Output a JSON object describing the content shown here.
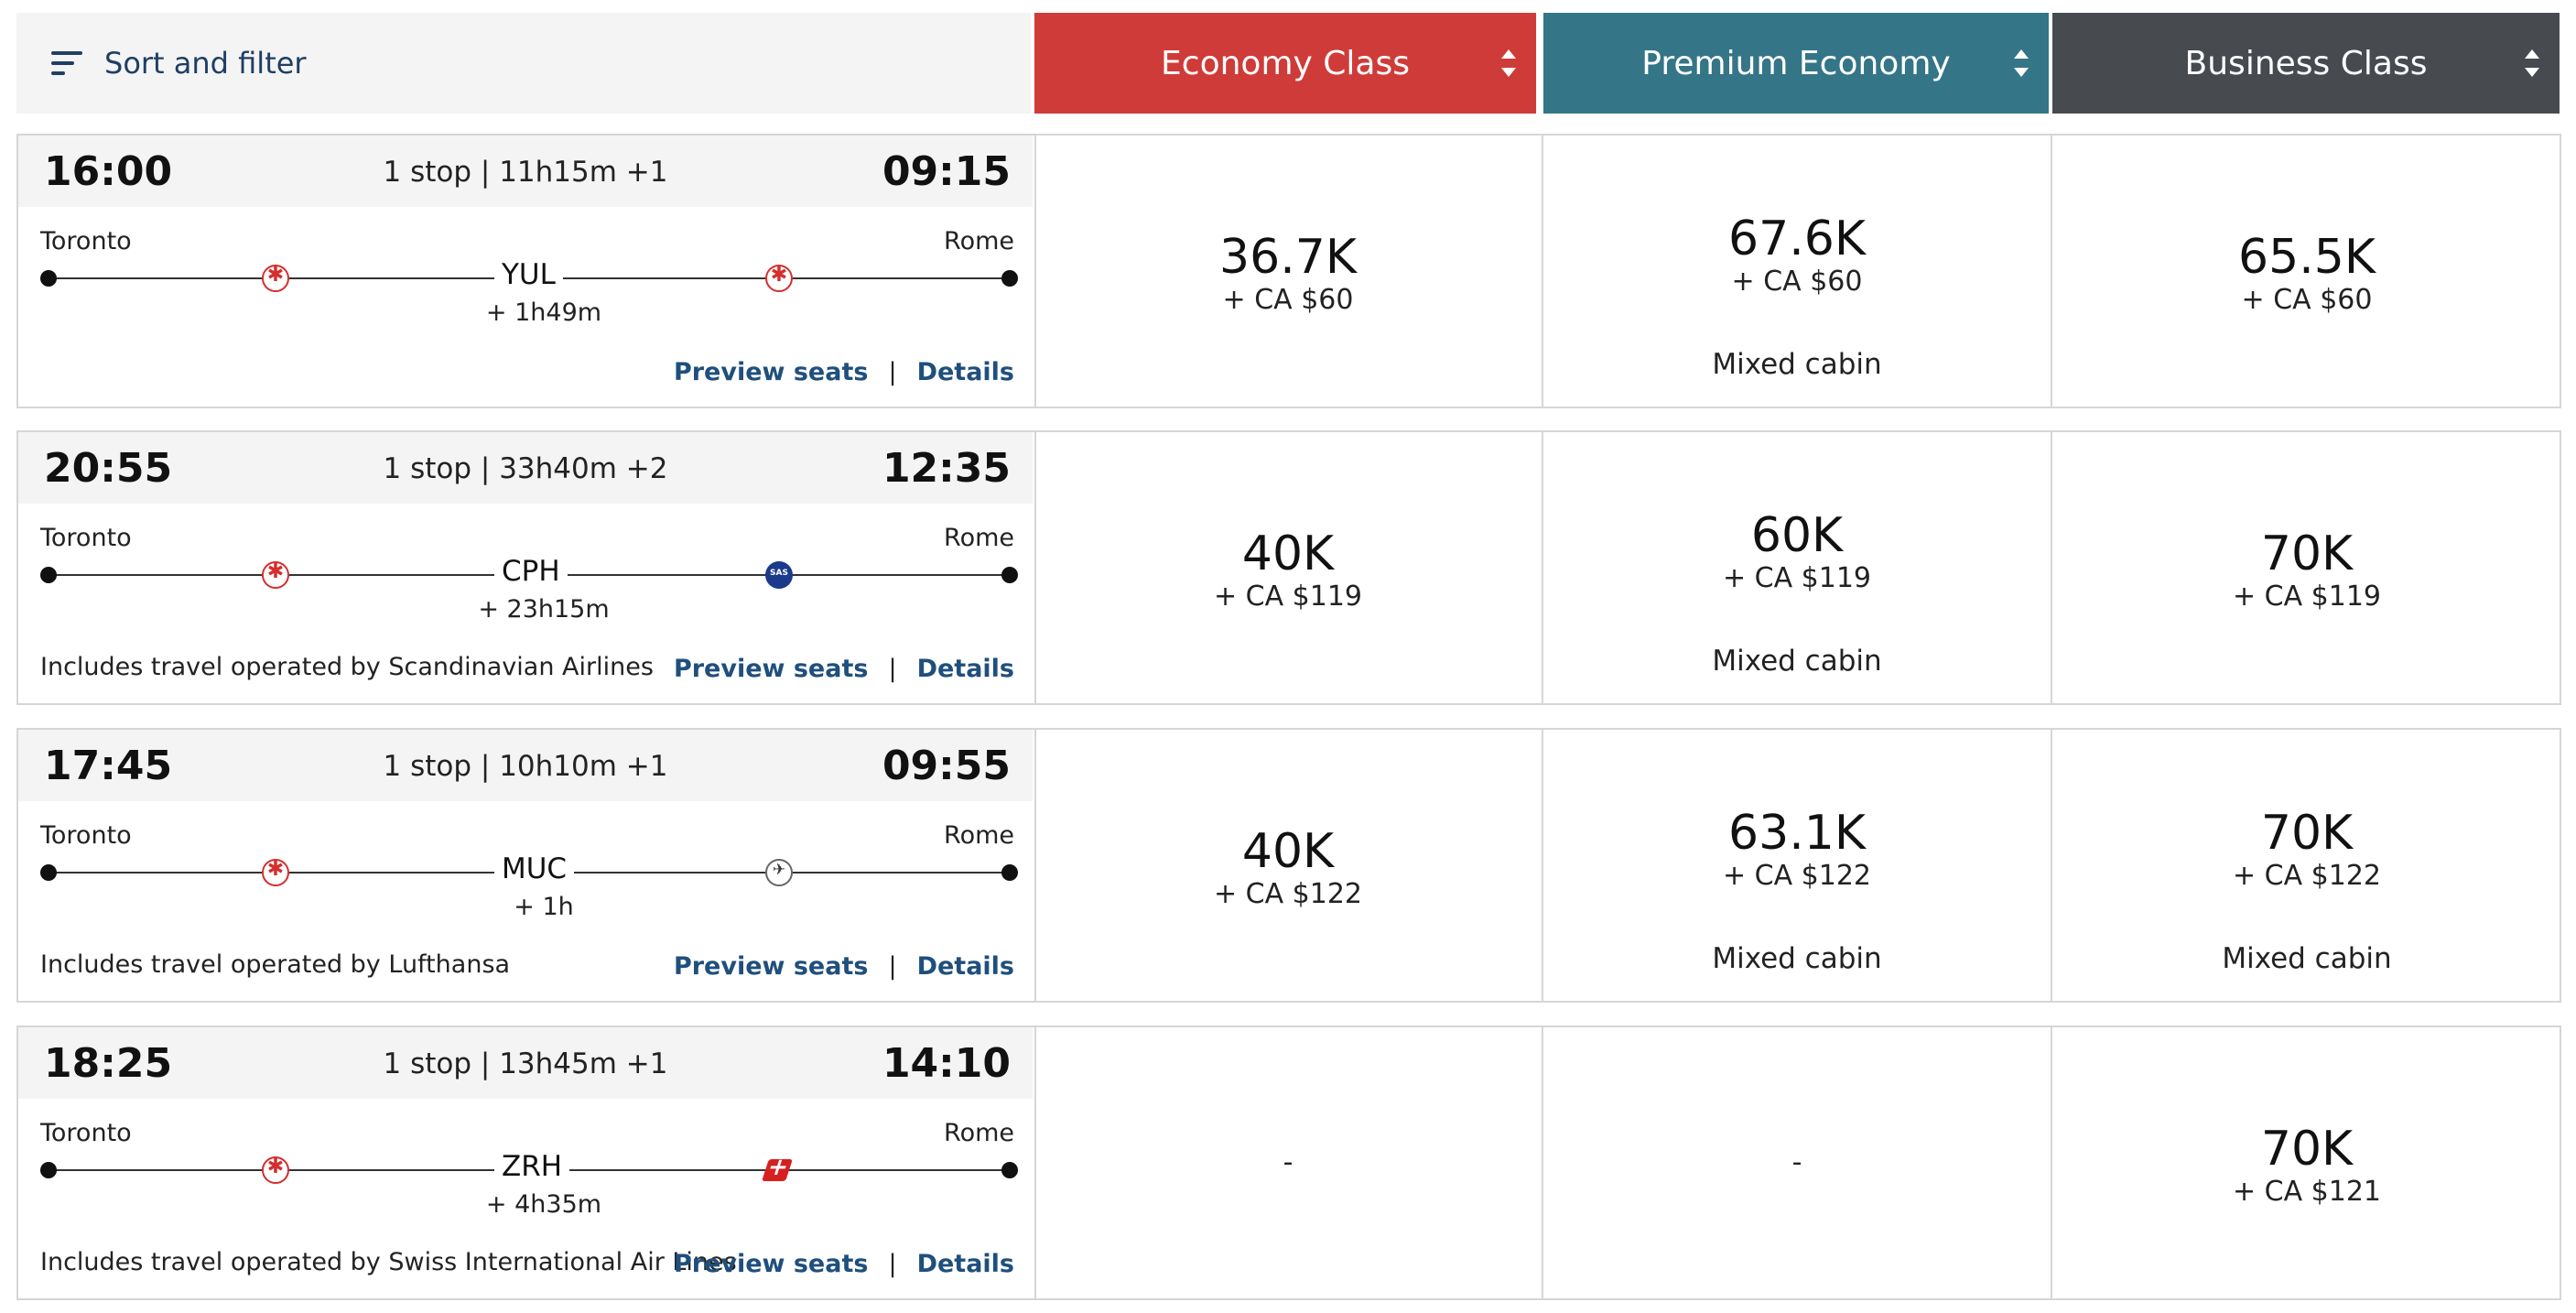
{
  "header": {
    "sort_label": "Sort and filter",
    "cabins": [
      {
        "label": "Economy Class",
        "color": "#cf3b38"
      },
      {
        "label": "Premium Economy",
        "color": "#347587"
      },
      {
        "label": "Business Class",
        "color": "#474a4f"
      }
    ]
  },
  "flights": [
    {
      "departure": "16:00",
      "arrival": "09:15",
      "summary": "1 stop | 11h15m +1",
      "origin": "Toronto",
      "destination": "Rome",
      "hub": "YUL",
      "layover": "+ 1h49m",
      "first_leg_logo": "air-canada-logo-icon",
      "second_leg_logo": "air-canada-logo-icon",
      "operated_by": "",
      "preview_label": "Preview seats",
      "separator": "|",
      "details_label": "Details",
      "prices": [
        {
          "miles": "36.7K",
          "cash": "+ CA $60",
          "note": "",
          "available": true
        },
        {
          "miles": "67.6K",
          "cash": "+ CA $60",
          "note": "Mixed cabin",
          "available": true
        },
        {
          "miles": "65.5K",
          "cash": "+ CA $60",
          "note": "",
          "available": true
        }
      ]
    },
    {
      "departure": "20:55",
      "arrival": "12:35",
      "summary": "1 stop | 33h40m +2",
      "origin": "Toronto",
      "destination": "Rome",
      "hub": "CPH",
      "layover": "+ 23h15m",
      "first_leg_logo": "air-canada-logo-icon",
      "second_leg_logo": "sas-logo-icon",
      "operated_by": "Includes travel operated by Scandinavian Airlines",
      "preview_label": "Preview seats",
      "separator": "|",
      "details_label": "Details",
      "prices": [
        {
          "miles": "40K",
          "cash": "+ CA $119",
          "note": "",
          "available": true
        },
        {
          "miles": "60K",
          "cash": "+ CA $119",
          "note": "Mixed cabin",
          "available": true
        },
        {
          "miles": "70K",
          "cash": "+ CA $119",
          "note": "",
          "available": true
        }
      ]
    },
    {
      "departure": "17:45",
      "arrival": "09:55",
      "summary": "1 stop | 10h10m +1",
      "origin": "Toronto",
      "destination": "Rome",
      "hub": "MUC",
      "layover": "+ 1h",
      "first_leg_logo": "air-canada-logo-icon",
      "second_leg_logo": "lufthansa-logo-icon",
      "operated_by": "Includes travel operated by Lufthansa",
      "preview_label": "Preview seats",
      "separator": "|",
      "details_label": "Details",
      "prices": [
        {
          "miles": "40K",
          "cash": "+ CA $122",
          "note": "",
          "available": true
        },
        {
          "miles": "63.1K",
          "cash": "+ CA $122",
          "note": "Mixed cabin",
          "available": true
        },
        {
          "miles": "70K",
          "cash": "+ CA $122",
          "note": "Mixed cabin",
          "available": true
        }
      ]
    },
    {
      "departure": "18:25",
      "arrival": "14:10",
      "summary": "1 stop | 13h45m +1",
      "origin": "Toronto",
      "destination": "Rome",
      "hub": "ZRH",
      "layover": "+ 4h35m",
      "first_leg_logo": "air-canada-logo-icon",
      "second_leg_logo": "swiss-logo-icon",
      "operated_by": "Includes travel operated by Swiss International Air Lines",
      "preview_label": "Preview seats",
      "separator": "|",
      "details_label": "Details",
      "prices": [
        {
          "miles": "-",
          "cash": "",
          "note": "",
          "available": false
        },
        {
          "miles": "-",
          "cash": "",
          "note": "",
          "available": false
        },
        {
          "miles": "70K",
          "cash": "+ CA $121",
          "note": "",
          "available": true
        }
      ]
    }
  ]
}
